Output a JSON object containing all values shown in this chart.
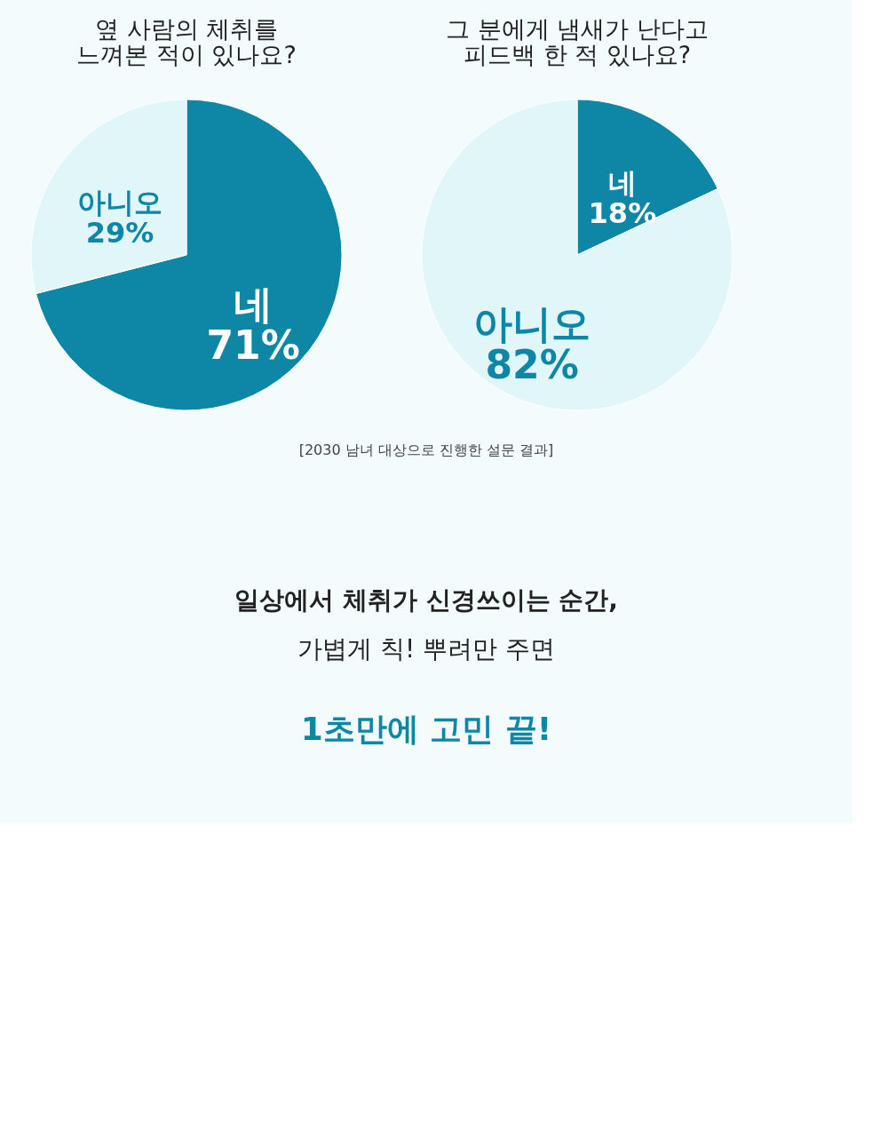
{
  "chart_data": [
    {
      "type": "pie",
      "title": "옆 사람의 체취를\n느껴본 적이 있나요?",
      "categories": [
        "네",
        "아니오"
      ],
      "values": [
        71,
        29
      ],
      "colors": [
        "#0e87a6",
        "#e0f6f9"
      ],
      "value_labels": [
        "71%",
        "29%"
      ],
      "legend": false
    },
    {
      "type": "pie",
      "title": "그 분에게 냄새가 난다고\n피드백 한 적 있나요?",
      "categories": [
        "네",
        "아니오"
      ],
      "values": [
        18,
        82
      ],
      "colors": [
        "#0e87a6",
        "#e0f6f9"
      ],
      "value_labels": [
        "18%",
        "82%"
      ],
      "legend": false
    },
    {
      "type": "other",
      "annotations": [
        "[2030 남녀 대상으로 진행한 설문 결과]",
        "일상에서 체취가 신경쓰이는 순간,",
        "가볍게 칙! 뿌려만 주면",
        "1초만에 고민 끝!"
      ]
    }
  ]
}
